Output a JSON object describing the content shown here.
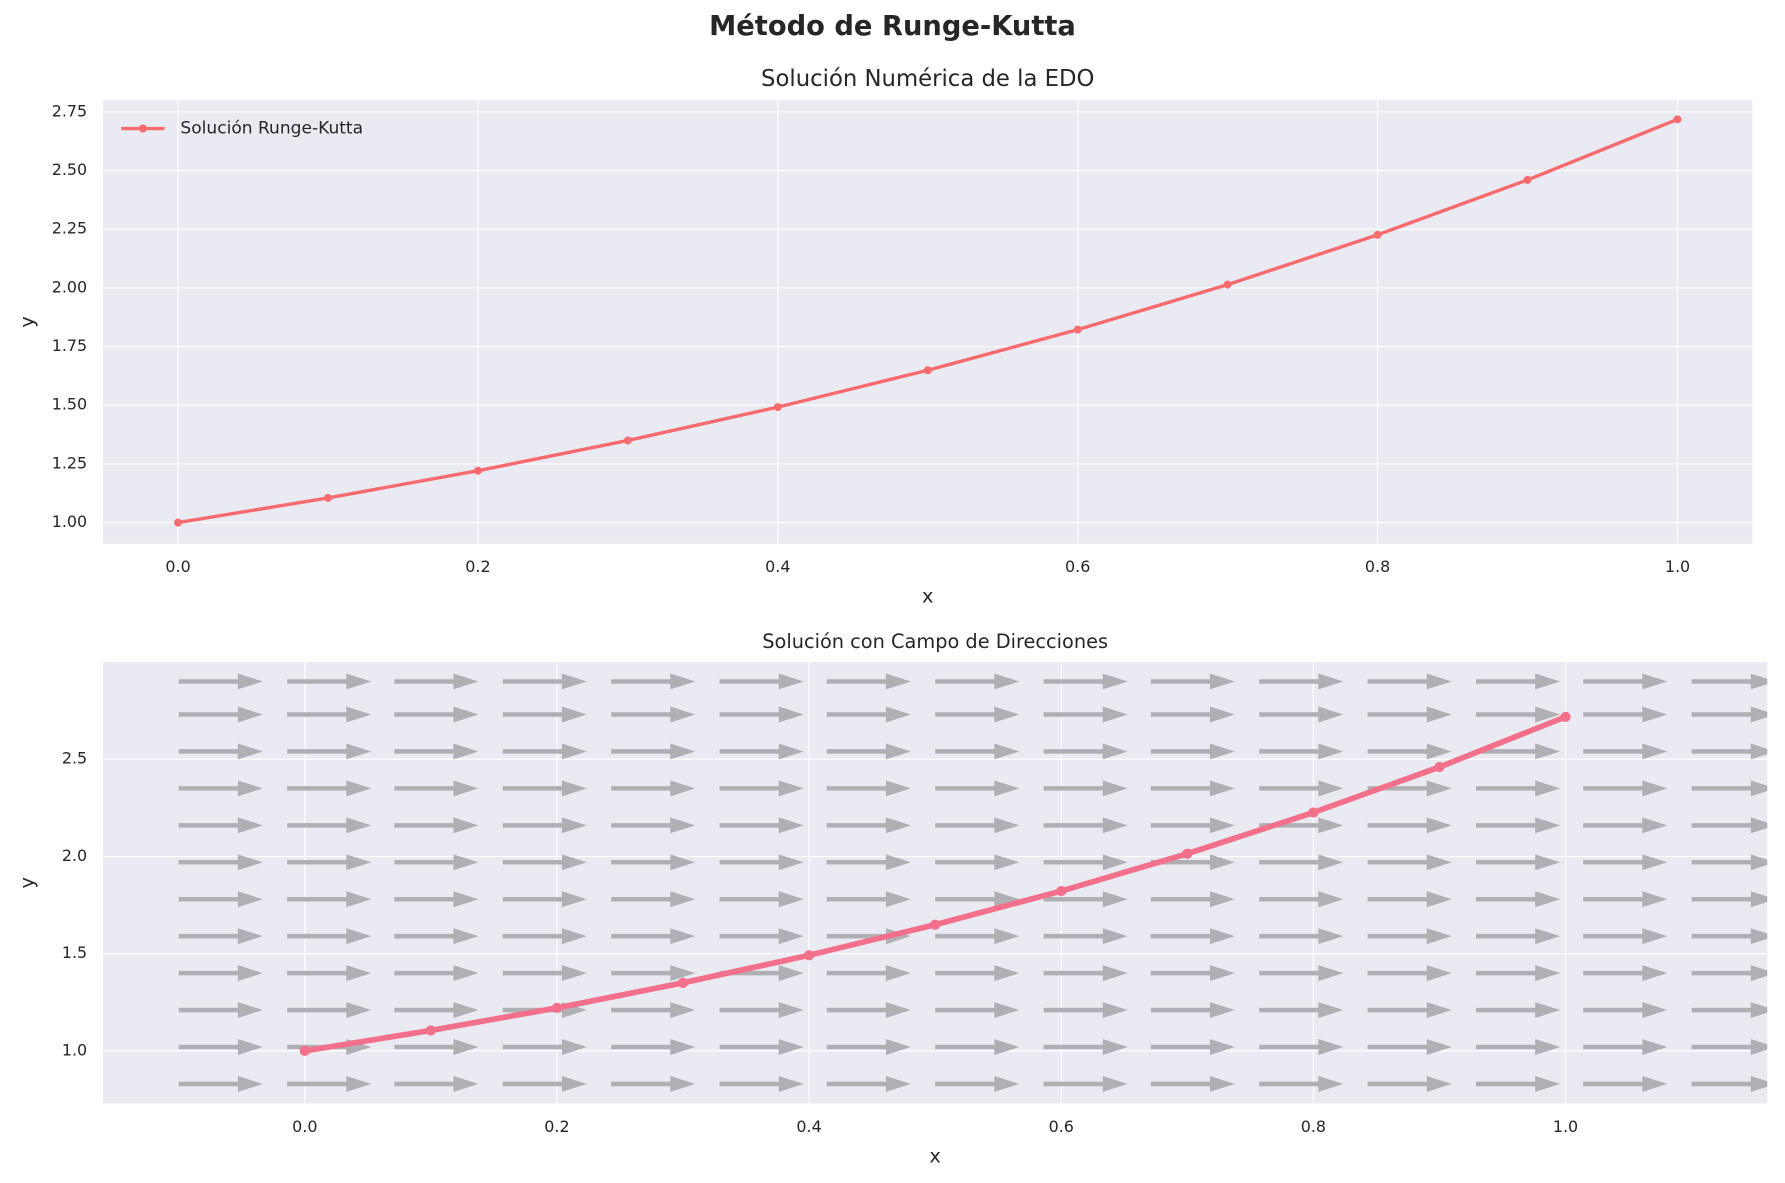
{
  "title": "Método de Runge-Kutta",
  "chart_data": [
    {
      "type": "line",
      "title": "Solución Numérica de la EDO",
      "xlabel": "x",
      "ylabel": "y",
      "x": [
        0,
        0.1,
        0.2,
        0.3,
        0.4,
        0.5,
        0.6,
        0.7,
        0.8,
        0.9,
        1.0
      ],
      "series": [
        {
          "name": "Solución Runge-Kutta",
          "color": "#f76a6d",
          "values": [
            1.0,
            1.105,
            1.221,
            1.35,
            1.492,
            1.649,
            1.822,
            2.014,
            2.226,
            2.46,
            2.718
          ]
        }
      ],
      "xlim": [
        -0.05,
        1.05
      ],
      "ylim": [
        0.91,
        2.8
      ],
      "xticks": [
        {
          "value": 0,
          "label": "0.0"
        },
        0.2,
        0.4,
        0.6,
        0.8,
        {
          "value": 1,
          "label": "1.0"
        }
      ],
      "yticks": [
        {
          "value": 1,
          "label": "1.00"
        },
        1.25,
        {
          "value": 1.5,
          "label": "1.50"
        },
        1.75,
        {
          "value": 2,
          "label": "2.00"
        },
        2.25,
        {
          "value": 2.5,
          "label": "2.50"
        },
        2.75
      ],
      "grid": true,
      "legend": "upper left"
    },
    {
      "type": "line",
      "title": "Solución con Campo de Direcciones",
      "xlabel": "x",
      "ylabel": "y",
      "x": [
        0,
        0.1,
        0.2,
        0.3,
        0.4,
        0.5,
        0.6,
        0.7,
        0.8,
        0.9,
        1.0
      ],
      "series": [
        {
          "color": "#f2708a",
          "values": [
            1.0,
            1.105,
            1.221,
            1.35,
            1.492,
            1.649,
            1.822,
            2.014,
            2.226,
            2.46,
            2.718
          ]
        }
      ],
      "field_x": [
        -0.1,
        -0.014,
        0.071,
        0.157,
        0.243,
        0.329,
        0.414,
        0.5,
        0.586,
        0.671,
        0.757,
        0.843,
        0.929,
        1.014,
        1.1
      ],
      "field_y": [
        0.83,
        1.02,
        1.21,
        1.4,
        1.59,
        1.78,
        1.97,
        2.16,
        2.35,
        2.54,
        2.73,
        2.9
      ],
      "field_color": "#b0b0b4",
      "xlim": [
        -0.16,
        1.16
      ],
      "ylim": [
        0.73,
        3.0
      ],
      "xticks": [
        {
          "value": 0,
          "label": "0.0"
        },
        0.2,
        0.4,
        0.6,
        0.8,
        {
          "value": 1,
          "label": "1.0"
        }
      ],
      "yticks": [
        {
          "value": 1,
          "label": "1.0"
        },
        1.5,
        {
          "value": 2,
          "label": "2.0"
        },
        2.5
      ],
      "grid": true
    }
  ]
}
